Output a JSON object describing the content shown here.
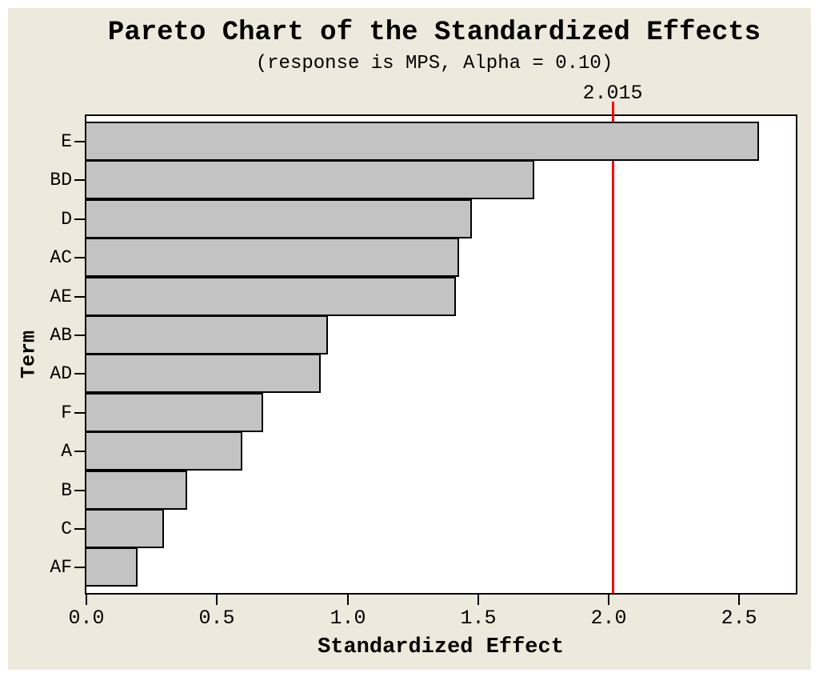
{
  "window": {
    "page_background": "#FFFFFF",
    "canvas_background": "#EDE9DC"
  },
  "chart": {
    "title": "Pareto Chart of the Standardized Effects",
    "subtitle": "(response is MPS, Alpha = 0.10)",
    "x_axis_label": "Standardized Effect",
    "y_axis_label": "Term",
    "reference_label": "2.015"
  },
  "colors": {
    "bar_fill": "#C3C3C3",
    "bar_border": "#000000",
    "reference_line": "#FF0000",
    "plot_background": "#FFFFFF",
    "text": "#000000"
  },
  "chart_data": {
    "type": "bar",
    "orientation": "horizontal",
    "title": "Pareto Chart of the Standardized Effects",
    "subtitle": "(response is MPS, Alpha = 0.10)",
    "xlabel": "Standardized Effect",
    "ylabel": "Term",
    "categories": [
      "E",
      "BD",
      "D",
      "AC",
      "AE",
      "AB",
      "AD",
      "F",
      "A",
      "B",
      "C",
      "AF"
    ],
    "values": [
      2.57,
      1.71,
      1.47,
      1.42,
      1.41,
      0.92,
      0.89,
      0.67,
      0.59,
      0.38,
      0.29,
      0.19
    ],
    "reference_line": 2.015,
    "xlim": [
      0,
      2.716
    ],
    "x_tick_labels": [
      "0.0",
      "0.5",
      "1.0",
      "1.5",
      "2.0",
      "2.5"
    ],
    "x_tick_values": [
      0,
      0.5,
      1.0,
      1.5,
      2.0,
      2.5
    ],
    "grid": false,
    "legend": false
  }
}
